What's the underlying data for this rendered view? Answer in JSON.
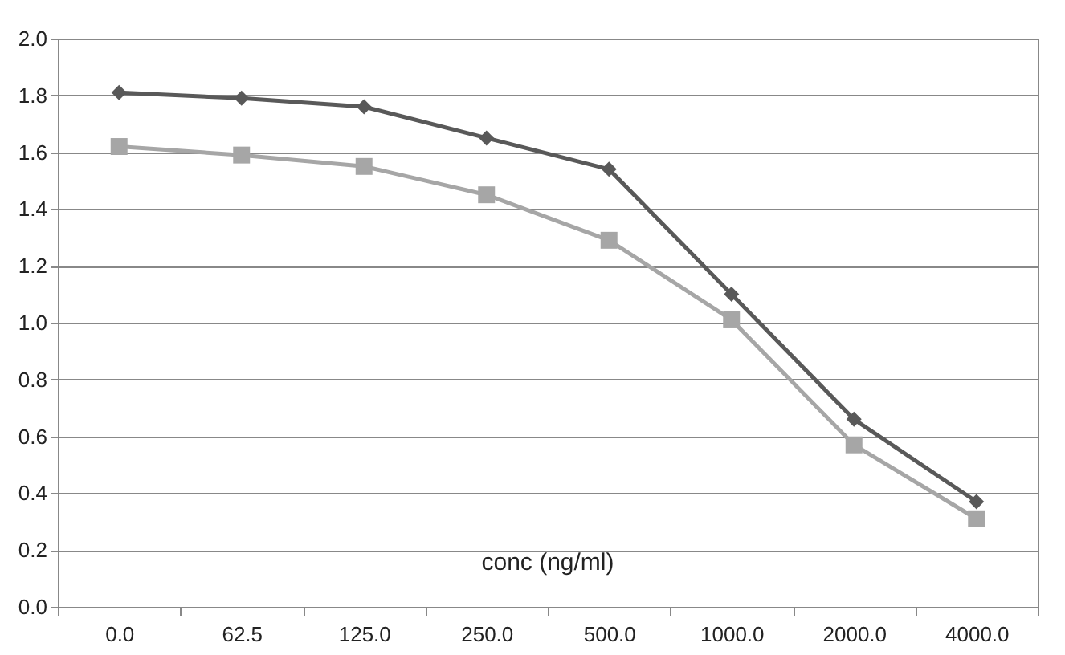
{
  "chart_data": {
    "type": "line",
    "xlabel": "conc (ng/ml)",
    "categories": [
      "0.0",
      "62.5",
      "125.0",
      "250.0",
      "500.0",
      "1000.0",
      "2000.0",
      "4000.0"
    ],
    "series": [
      {
        "color": "#595959",
        "marker": "diamond",
        "values": [
          1.81,
          1.79,
          1.76,
          1.65,
          1.54,
          1.1,
          0.66,
          0.37
        ]
      },
      {
        "color": "#a6a6a6",
        "marker": "square",
        "values": [
          1.62,
          1.59,
          1.55,
          1.45,
          1.29,
          1.01,
          0.57,
          0.31
        ]
      }
    ],
    "ylim": [
      0,
      2
    ],
    "yticks": [
      {
        "value": 0,
        "label": "0.0"
      },
      {
        "value": 0.2,
        "label": "0.2"
      },
      {
        "value": 0.4,
        "label": "0.4"
      },
      {
        "value": 0.6,
        "label": "0.6"
      },
      {
        "value": 0.8,
        "label": "0.8"
      },
      {
        "value": 1,
        "label": "1.0"
      },
      {
        "value": 1.2,
        "label": "1.2"
      },
      {
        "value": 1.4,
        "label": "1.4"
      },
      {
        "value": 1.6,
        "label": "1.6"
      },
      {
        "value": 1.8,
        "label": "1.8"
      },
      {
        "value": 2,
        "label": "2.0"
      }
    ],
    "grid": "y"
  }
}
